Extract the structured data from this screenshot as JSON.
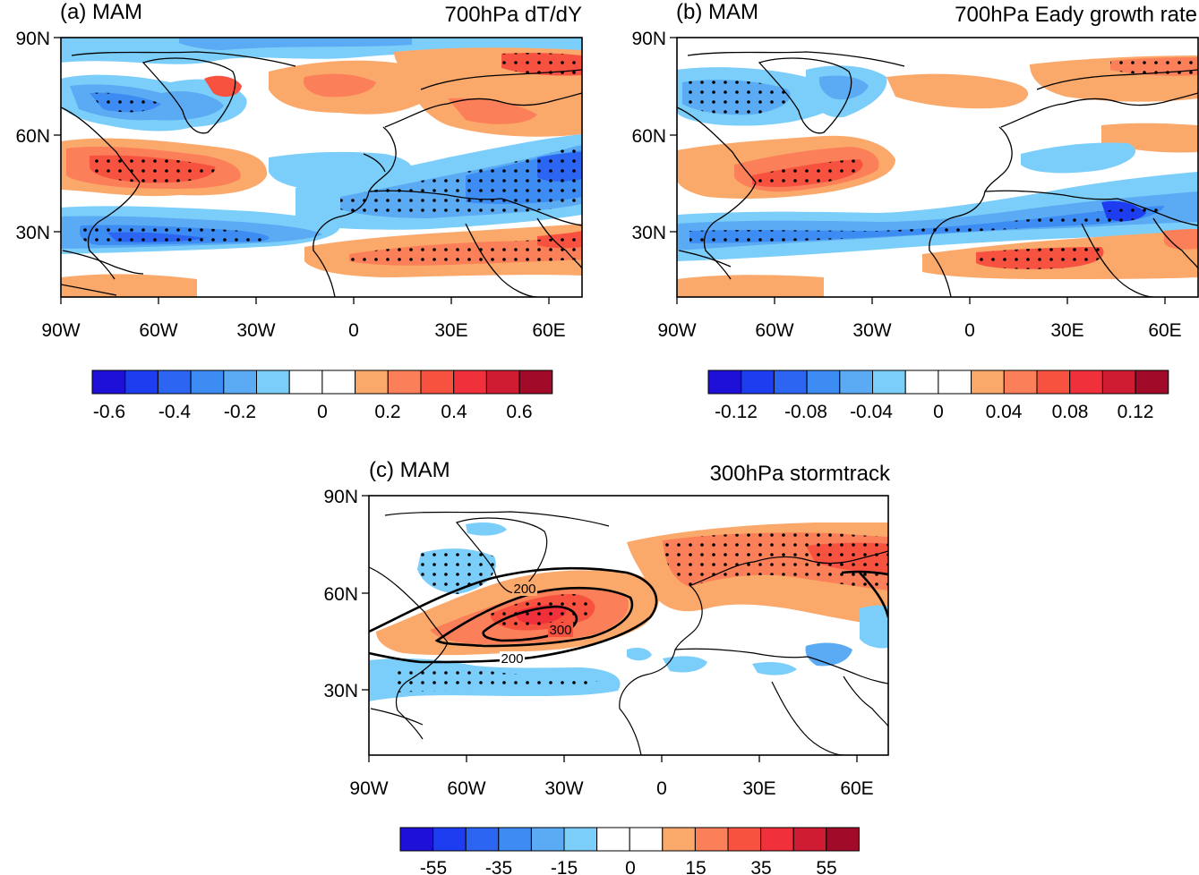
{
  "panels": [
    {
      "id": "a",
      "label": "(a) MAM",
      "title": "700hPa dT/dY",
      "lat_ticks": [
        "90N",
        "60N",
        "30N"
      ],
      "lon_ticks": [
        "90W",
        "60W",
        "30W",
        "0",
        "30E",
        "60E"
      ],
      "colorbar_labels": [
        "-0.6",
        "-0.4",
        "-0.2",
        "0",
        "0.2",
        "0.4",
        "0.6"
      ]
    },
    {
      "id": "b",
      "label": "(b) MAM",
      "title": "700hPa Eady growth rate",
      "lat_ticks": [
        "90N",
        "60N",
        "30N"
      ],
      "lon_ticks": [
        "90W",
        "60W",
        "30W",
        "0",
        "30E",
        "60E"
      ],
      "colorbar_labels": [
        "-0.12",
        "-0.08",
        "-0.04",
        "0",
        "0.04",
        "0.08",
        "0.12"
      ]
    },
    {
      "id": "c",
      "label": "(c) MAM",
      "title": "300hPa stormtrack",
      "lat_ticks": [
        "90N",
        "60N",
        "30N"
      ],
      "lon_ticks": [
        "90W",
        "60W",
        "30W",
        "0",
        "30E",
        "60E"
      ],
      "colorbar_labels": [
        "-55",
        "-35",
        "-15",
        "0",
        "15",
        "35",
        "55"
      ],
      "contour_labels": [
        "200",
        "300",
        "200"
      ]
    }
  ],
  "palette": [
    "#1f10d8",
    "#1e3df0",
    "#2b65f2",
    "#3d8cf3",
    "#5aabf4",
    "#7ccefa",
    "#ffffff",
    "#ffffff",
    "#fba86b",
    "#fb7f58",
    "#f7523f",
    "#f0303b",
    "#d01c32",
    "#a10a28"
  ],
  "map_extent": {
    "lon": [
      -90,
      70
    ],
    "lat": [
      10,
      90
    ]
  }
}
